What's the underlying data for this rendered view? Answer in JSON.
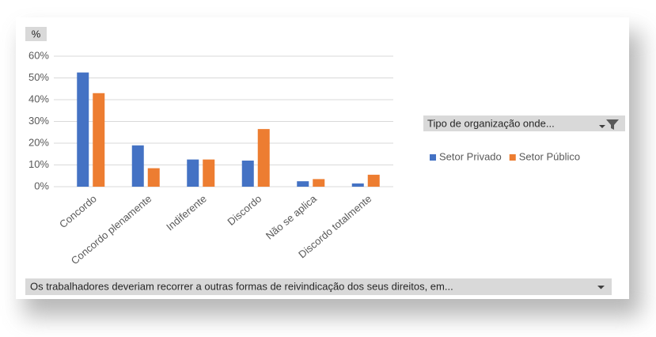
{
  "chart_data": {
    "type": "bar",
    "value_field": "%",
    "legend_field": "Tipo de organização onde...",
    "axis_field": "Os trabalhadores deveriam recorrer a outras formas de reivindicação dos seus direitos, em...",
    "categories": [
      "Concordo",
      "Concordo plenamente",
      "Indiferente",
      "Discordo",
      "Não se aplica",
      "Discordo totalmente"
    ],
    "series": [
      {
        "name": "Setor Privado",
        "color": "#4472c4",
        "values": [
          52.5,
          19,
          12.5,
          12,
          2.5,
          1.5
        ]
      },
      {
        "name": "Setor Público",
        "color": "#ed7d31",
        "values": [
          43,
          8.5,
          12.5,
          26.5,
          3.5,
          5.5
        ]
      }
    ],
    "ylim": [
      0,
      60
    ],
    "yticks": [
      {
        "value": 0,
        "label": "0%"
      },
      {
        "value": 10,
        "label": "10%"
      },
      {
        "value": 20,
        "label": "20%"
      },
      {
        "value": 30,
        "label": "30%"
      },
      {
        "value": 40,
        "label": "40%"
      },
      {
        "value": 50,
        "label": "50%"
      },
      {
        "value": 60,
        "label": "60%"
      }
    ],
    "grid": true,
    "legend_position": "right"
  }
}
